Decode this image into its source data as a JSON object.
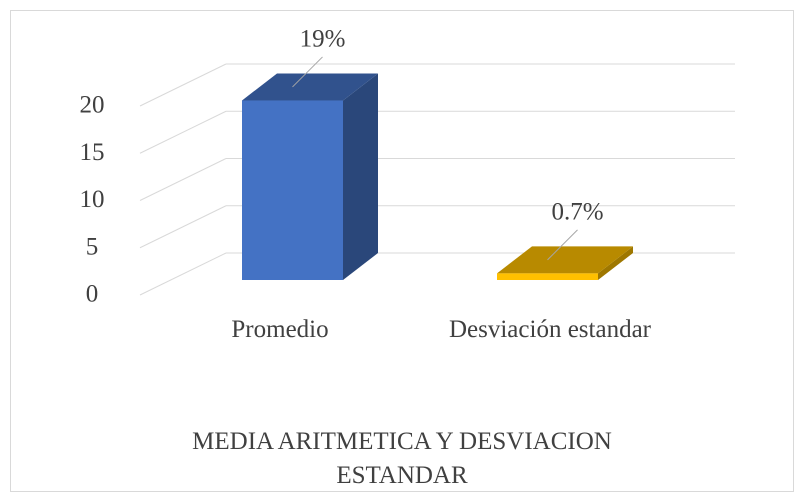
{
  "chart_data": {
    "type": "bar3d",
    "title": "MEDIA ARITMETICA  Y DESVIACION ESTANDAR",
    "categories": [
      "Promedio",
      "Desviación estandar"
    ],
    "values": [
      19,
      0.7
    ],
    "value_labels": [
      "19%",
      "0.7%"
    ],
    "colors": [
      "#4472c4",
      "#ffc000"
    ],
    "ylim": [
      0,
      20
    ],
    "yticks": [
      0,
      5,
      10,
      15,
      20
    ],
    "grid": true
  }
}
